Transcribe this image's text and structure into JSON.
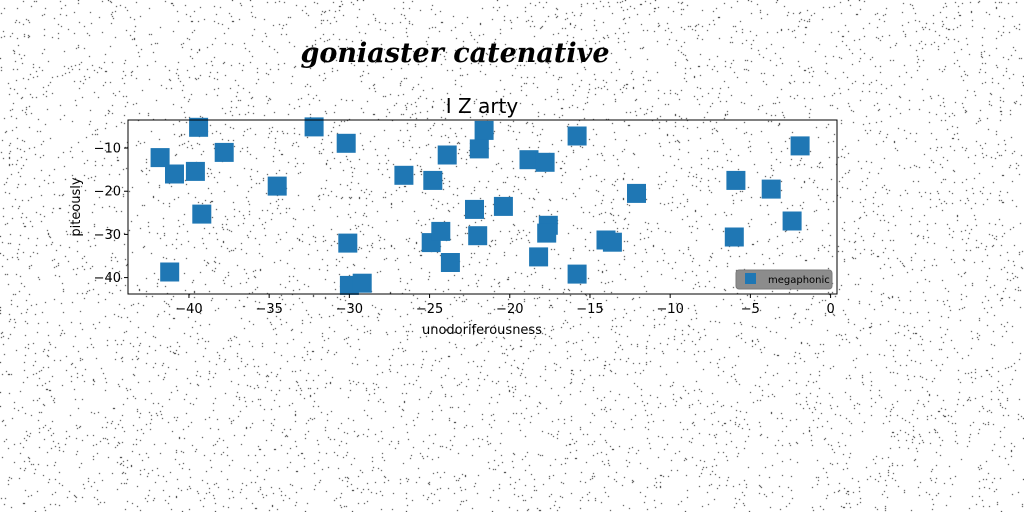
{
  "suptitle": "goniaster catenative",
  "chart_data": {
    "type": "scatter",
    "title": "I Z arty",
    "xlabel": "unodoriferousness",
    "ylabel": "piteously",
    "xlim": [
      -43.8,
      0.4
    ],
    "ylim": [
      -43.8,
      -3.5
    ],
    "xticks": [
      -40,
      -35,
      -30,
      -25,
      -20,
      -15,
      -10,
      -5,
      0
    ],
    "xtick_labels": [
      "−40",
      "−35",
      "−30",
      "−25",
      "−20",
      "−15",
      "−10",
      "−5",
      "0"
    ],
    "yticks": [
      -40,
      -30,
      -20,
      -10
    ],
    "ytick_labels": [
      "−40",
      "−30",
      "−20",
      "−10"
    ],
    "grid": false,
    "legend_position": "lower-right",
    "marker": "square",
    "series": [
      {
        "name": "megaphonic",
        "color": "#1f77b4",
        "points": [
          {
            "x": -41.8,
            "y": -12.2
          },
          {
            "x": -40.9,
            "y": -16.0
          },
          {
            "x": -41.2,
            "y": -38.7
          },
          {
            "x": -39.4,
            "y": -5.2
          },
          {
            "x": -39.6,
            "y": -15.4
          },
          {
            "x": -39.2,
            "y": -25.3
          },
          {
            "x": -37.8,
            "y": -11.0
          },
          {
            "x": -34.5,
            "y": -18.8
          },
          {
            "x": -32.2,
            "y": -5.1
          },
          {
            "x": -30.2,
            "y": -8.9
          },
          {
            "x": -30.1,
            "y": -32.0
          },
          {
            "x": -30.0,
            "y": -41.8
          },
          {
            "x": -29.2,
            "y": -41.3
          },
          {
            "x": -26.6,
            "y": -16.3
          },
          {
            "x": -24.8,
            "y": -17.5
          },
          {
            "x": -24.9,
            "y": -31.9
          },
          {
            "x": -24.3,
            "y": -29.3
          },
          {
            "x": -23.9,
            "y": -11.6
          },
          {
            "x": -23.7,
            "y": -36.5
          },
          {
            "x": -22.2,
            "y": -24.2
          },
          {
            "x": -22.0,
            "y": -30.3
          },
          {
            "x": -21.9,
            "y": -10.2
          },
          {
            "x": -21.6,
            "y": -5.9
          },
          {
            "x": -20.4,
            "y": -23.5
          },
          {
            "x": -18.8,
            "y": -12.7
          },
          {
            "x": -18.2,
            "y": -35.2
          },
          {
            "x": -17.8,
            "y": -13.3
          },
          {
            "x": -17.6,
            "y": -27.9
          },
          {
            "x": -17.7,
            "y": -29.7
          },
          {
            "x": -15.8,
            "y": -7.2
          },
          {
            "x": -15.8,
            "y": -39.2
          },
          {
            "x": -14.0,
            "y": -31.3
          },
          {
            "x": -13.6,
            "y": -31.8
          },
          {
            "x": -12.1,
            "y": -20.5
          },
          {
            "x": -5.9,
            "y": -17.5
          },
          {
            "x": -6.0,
            "y": -30.6
          },
          {
            "x": -3.7,
            "y": -19.5
          },
          {
            "x": -2.4,
            "y": -26.9
          },
          {
            "x": -1.9,
            "y": -9.5
          }
        ]
      }
    ]
  }
}
